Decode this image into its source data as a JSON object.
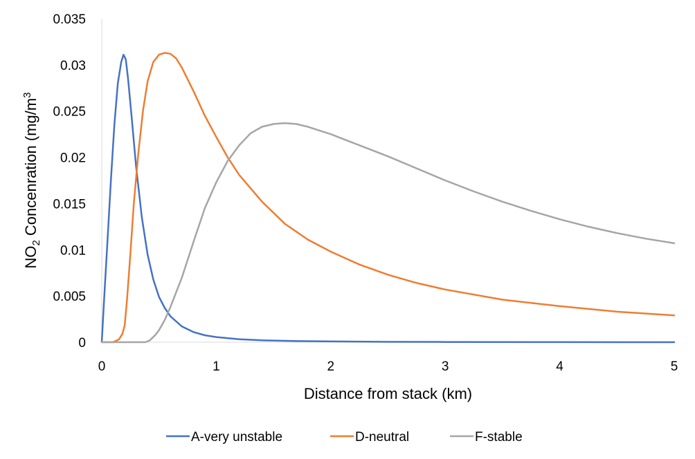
{
  "chart_data": {
    "type": "line",
    "xlabel": "Distance from stack (km)",
    "ylabel": {
      "prefix": "NO",
      "sub": "2",
      "middle": " Concenration  (mg/m",
      "sup": "3"
    },
    "xlim": [
      0,
      5
    ],
    "ylim": [
      0,
      0.035
    ],
    "x_ticks": [
      "0",
      "1",
      "2",
      "3",
      "4",
      "5"
    ],
    "y_ticks": [
      "0",
      "0.005",
      "0.01",
      "0.015",
      "0.02",
      "0.025",
      "0.03",
      "0.035"
    ],
    "grid": false,
    "legend_position": "bottom",
    "series": [
      {
        "name": "A-very unstable",
        "color": "#4472C4",
        "points": [
          [
            0,
            0
          ],
          [
            0.02,
            0.0045
          ],
          [
            0.05,
            0.011
          ],
          [
            0.08,
            0.0175
          ],
          [
            0.11,
            0.0235
          ],
          [
            0.14,
            0.028
          ],
          [
            0.17,
            0.0303
          ],
          [
            0.19,
            0.0311
          ],
          [
            0.21,
            0.0306
          ],
          [
            0.23,
            0.0285
          ],
          [
            0.26,
            0.0245
          ],
          [
            0.3,
            0.019
          ],
          [
            0.35,
            0.0135
          ],
          [
            0.4,
            0.0095
          ],
          [
            0.45,
            0.0068
          ],
          [
            0.5,
            0.0049
          ],
          [
            0.55,
            0.0037
          ],
          [
            0.6,
            0.0028
          ],
          [
            0.7,
            0.0017
          ],
          [
            0.8,
            0.0011
          ],
          [
            0.9,
            0.00075
          ],
          [
            1.0,
            0.00055
          ],
          [
            1.2,
            0.00032
          ],
          [
            1.4,
            0.0002
          ],
          [
            1.7,
            0.00012
          ],
          [
            2.0,
            8e-05
          ],
          [
            2.5,
            4e-05
          ],
          [
            3.0,
            2e-05
          ],
          [
            4.0,
            1e-05
          ],
          [
            5.0,
            0
          ]
        ]
      },
      {
        "name": "D-neutral",
        "color": "#ED7D31",
        "points": [
          [
            0,
            0
          ],
          [
            0.1,
            0
          ],
          [
            0.15,
            0.0003
          ],
          [
            0.18,
            0.0009
          ],
          [
            0.2,
            0.0018
          ],
          [
            0.22,
            0.0045
          ],
          [
            0.25,
            0.0095
          ],
          [
            0.28,
            0.015
          ],
          [
            0.32,
            0.0205
          ],
          [
            0.36,
            0.025
          ],
          [
            0.4,
            0.0282
          ],
          [
            0.45,
            0.0303
          ],
          [
            0.5,
            0.0311
          ],
          [
            0.55,
            0.0313
          ],
          [
            0.6,
            0.0312
          ],
          [
            0.65,
            0.0307
          ],
          [
            0.7,
            0.0297
          ],
          [
            0.8,
            0.0272
          ],
          [
            0.9,
            0.0245
          ],
          [
            1.0,
            0.0222
          ],
          [
            1.1,
            0.02
          ],
          [
            1.2,
            0.0181
          ],
          [
            1.4,
            0.0152
          ],
          [
            1.6,
            0.0128
          ],
          [
            1.8,
            0.0111
          ],
          [
            2.0,
            0.0098
          ],
          [
            2.25,
            0.0084
          ],
          [
            2.5,
            0.0073
          ],
          [
            2.75,
            0.0064
          ],
          [
            3.0,
            0.0057
          ],
          [
            3.5,
            0.0046
          ],
          [
            4.0,
            0.0039
          ],
          [
            4.5,
            0.0033
          ],
          [
            5.0,
            0.0029
          ]
        ]
      },
      {
        "name": "F-stable",
        "color": "#A5A5A5",
        "points": [
          [
            0,
            0
          ],
          [
            0.38,
            0
          ],
          [
            0.42,
            0.0002
          ],
          [
            0.47,
            0.0008
          ],
          [
            0.5,
            0.0013
          ],
          [
            0.55,
            0.0024
          ],
          [
            0.6,
            0.0038
          ],
          [
            0.7,
            0.007
          ],
          [
            0.8,
            0.0108
          ],
          [
            0.9,
            0.0145
          ],
          [
            1.0,
            0.0173
          ],
          [
            1.1,
            0.0196
          ],
          [
            1.2,
            0.0213
          ],
          [
            1.3,
            0.0226
          ],
          [
            1.4,
            0.0233
          ],
          [
            1.5,
            0.0236
          ],
          [
            1.6,
            0.0237
          ],
          [
            1.7,
            0.0236
          ],
          [
            1.8,
            0.0233
          ],
          [
            2.0,
            0.0225
          ],
          [
            2.25,
            0.0213
          ],
          [
            2.5,
            0.0201
          ],
          [
            2.75,
            0.0188
          ],
          [
            3.0,
            0.0175
          ],
          [
            3.25,
            0.0163
          ],
          [
            3.5,
            0.0152
          ],
          [
            3.75,
            0.0142
          ],
          [
            4.0,
            0.0133
          ],
          [
            4.25,
            0.0125
          ],
          [
            4.5,
            0.0118
          ],
          [
            4.75,
            0.0112
          ],
          [
            5.0,
            0.0107
          ]
        ]
      }
    ]
  }
}
